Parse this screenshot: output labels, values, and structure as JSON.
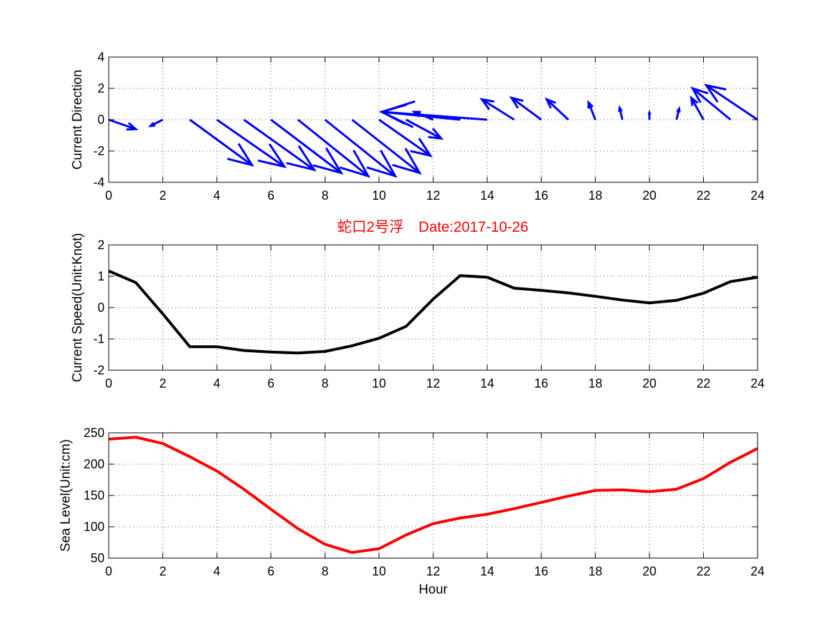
{
  "title": "蛇口2号浮　Date:2017-10-26",
  "colors": {
    "direction": "#0000ff",
    "speed": "#000000",
    "level": "#ff0000",
    "title": "#ff0000"
  },
  "chart_data": [
    {
      "type": "quiver",
      "ylabel": "Current Direction",
      "xlabel": "",
      "xlim": [
        0,
        24
      ],
      "ylim": [
        -4,
        4
      ],
      "xticks": [
        0,
        2,
        4,
        6,
        8,
        10,
        12,
        14,
        16,
        18,
        20,
        22,
        24
      ],
      "yticks": [
        -4,
        -2,
        0,
        2,
        4
      ],
      "grid": true,
      "vectors": [
        {
          "x": 0,
          "u": 1.0,
          "v": -0.6
        },
        {
          "x": 1,
          "u": 0.0,
          "v": 0.0
        },
        {
          "x": 2,
          "u": -0.45,
          "v": -0.4
        },
        {
          "x": 3,
          "u": 2.3,
          "v": -2.9
        },
        {
          "x": 4,
          "u": 2.5,
          "v": -3.0
        },
        {
          "x": 5,
          "u": 2.6,
          "v": -3.2
        },
        {
          "x": 6,
          "u": 2.6,
          "v": -3.4
        },
        {
          "x": 7,
          "u": 2.6,
          "v": -3.6
        },
        {
          "x": 8,
          "u": 2.6,
          "v": -3.6
        },
        {
          "x": 9,
          "u": 2.5,
          "v": -3.4
        },
        {
          "x": 10,
          "u": 1.9,
          "v": -2.3
        },
        {
          "x": 11,
          "u": 1.3,
          "v": -1.2
        },
        {
          "x": 12,
          "u": -0.7,
          "v": 0.5
        },
        {
          "x": 13,
          "u": -2.9,
          "v": 0.5
        },
        {
          "x": 14,
          "u": -3.9,
          "v": 0.5
        },
        {
          "x": 15,
          "u": -1.2,
          "v": 1.3
        },
        {
          "x": 16,
          "u": -1.1,
          "v": 1.4
        },
        {
          "x": 17,
          "u": -0.8,
          "v": 1.3
        },
        {
          "x": 18,
          "u": -0.25,
          "v": 1.1
        },
        {
          "x": 19,
          "u": -0.1,
          "v": 0.75
        },
        {
          "x": 20,
          "u": 0.0,
          "v": 0.45
        },
        {
          "x": 21,
          "u": 0.1,
          "v": 0.7
        },
        {
          "x": 22,
          "u": -0.45,
          "v": 1.4
        },
        {
          "x": 23,
          "u": -1.4,
          "v": 2.0
        },
        {
          "x": 24,
          "u": -1.9,
          "v": 2.2
        }
      ]
    },
    {
      "type": "line",
      "ylabel": "Current Speed(Unit:Knot)",
      "xlabel": "",
      "xlim": [
        0,
        24
      ],
      "ylim": [
        -2,
        2
      ],
      "xticks": [
        0,
        2,
        4,
        6,
        8,
        10,
        12,
        14,
        16,
        18,
        20,
        22,
        24
      ],
      "yticks": [
        -2,
        -1,
        0,
        1,
        2
      ],
      "grid": true,
      "x": [
        0,
        1,
        2,
        3,
        4,
        5,
        6,
        7,
        8,
        9,
        10,
        11,
        12,
        13,
        14,
        15,
        16,
        17,
        18,
        19,
        20,
        21,
        22,
        23,
        24
      ],
      "y": [
        1.17,
        0.8,
        -0.2,
        -1.25,
        -1.25,
        -1.37,
        -1.42,
        -1.45,
        -1.4,
        -1.22,
        -0.98,
        -0.6,
        0.27,
        1.02,
        0.97,
        0.62,
        0.55,
        0.47,
        0.36,
        0.24,
        0.15,
        0.23,
        0.46,
        0.83,
        0.97
      ]
    },
    {
      "type": "line",
      "ylabel": "Sea Level(Unit:cm)",
      "xlabel": "Hour",
      "xlim": [
        0,
        24
      ],
      "ylim": [
        50,
        250
      ],
      "xticks": [
        0,
        2,
        4,
        6,
        8,
        10,
        12,
        14,
        16,
        18,
        20,
        22,
        24
      ],
      "yticks": [
        50,
        100,
        150,
        200,
        250
      ],
      "grid": true,
      "x": [
        0,
        1,
        2,
        3,
        4,
        5,
        6,
        7,
        8,
        9,
        10,
        11,
        12,
        13,
        14,
        15,
        16,
        17,
        18,
        19,
        20,
        21,
        22,
        23,
        24
      ],
      "y": [
        240,
        243,
        233,
        212,
        189,
        160,
        128,
        97,
        72,
        59,
        65,
        87,
        105,
        114,
        120,
        129,
        139,
        149,
        158,
        159,
        156,
        160,
        177,
        203,
        225
      ]
    }
  ]
}
